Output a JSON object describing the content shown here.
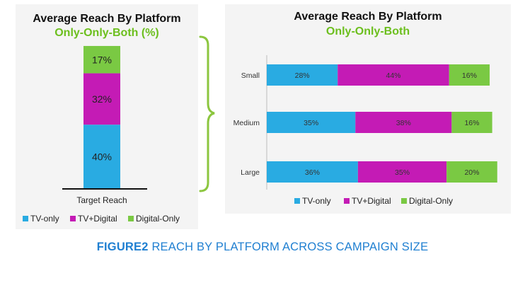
{
  "colors": {
    "tv_only": "#29abe2",
    "tv_digital": "#c41bb5",
    "digital_only": "#7ac943",
    "subtitle": "#6cbf1e",
    "caption": "#1f7fd1",
    "bracket": "#8cc63f"
  },
  "caption": {
    "figure": "FIGURE2",
    "text": "REACH BY PLATFORM ACROSS CAMPAIGN SIZE"
  },
  "chart_data": [
    {
      "type": "bar",
      "stacked": true,
      "orientation": "vertical",
      "title": "Average Reach By Platform",
      "subtitle": "Only-Only-Both (%)",
      "categories": [
        "Target Reach"
      ],
      "series": [
        {
          "name": "TV-only",
          "values": [
            40
          ],
          "labels": [
            "40%"
          ]
        },
        {
          "name": "TV+Digital",
          "values": [
            32
          ],
          "labels": [
            "32%"
          ]
        },
        {
          "name": "Digital-Only",
          "values": [
            17
          ],
          "labels": [
            "17%"
          ]
        }
      ],
      "legend": [
        "TV-only",
        "TV+Digital",
        "Digital-Only"
      ],
      "legend_position": "bottom"
    },
    {
      "type": "bar",
      "stacked": true,
      "orientation": "horizontal",
      "title": "Average Reach By Platform",
      "subtitle": "Only-Only-Both",
      "categories": [
        "Small",
        "Medium",
        "Large"
      ],
      "series": [
        {
          "name": "TV-only",
          "values": [
            28,
            35,
            36
          ],
          "labels": [
            "28%",
            "35%",
            "36%"
          ]
        },
        {
          "name": "TV+Digital",
          "values": [
            44,
            38,
            35
          ],
          "labels": [
            "44%",
            "38%",
            "35%"
          ]
        },
        {
          "name": "Digital-Only",
          "values": [
            16,
            16,
            20
          ],
          "labels": [
            "16%",
            "16%",
            "20%"
          ]
        }
      ],
      "legend": [
        "TV-only",
        "TV+Digital",
        "Digital-Only"
      ],
      "legend_position": "bottom"
    }
  ]
}
